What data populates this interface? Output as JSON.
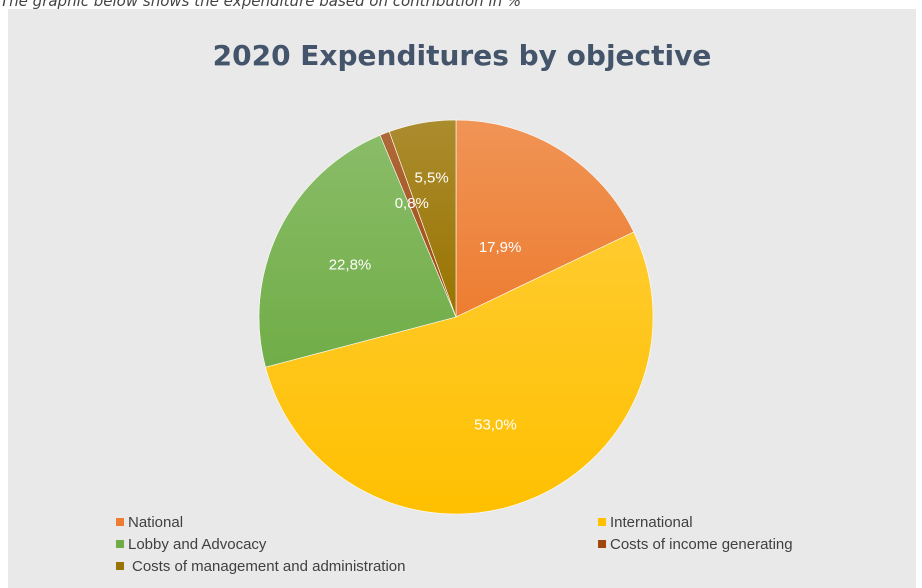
{
  "caption": "The graphic below shows the expenditure based on contribution in %",
  "chart_data": {
    "type": "pie",
    "title": "2020 Expenditures by objective",
    "slices": [
      {
        "name": "National",
        "value": 17.9,
        "label": "17,9%",
        "color": "#ed7d31"
      },
      {
        "name": "International",
        "value": 53.0,
        "label": "53,0%",
        "color": "#ffc000"
      },
      {
        "name": "Lobby and Advocacy",
        "value": 22.8,
        "label": "22,8%",
        "color": "#70ad47"
      },
      {
        "name": "Costs of income generating",
        "value": 0.8,
        "label": "0,8%",
        "color": "#9e480e"
      },
      {
        "name": "Costs of management and administration",
        "value": 5.5,
        "label": "5,5%",
        "color": "#997300"
      }
    ],
    "legend_position": "bottom"
  }
}
